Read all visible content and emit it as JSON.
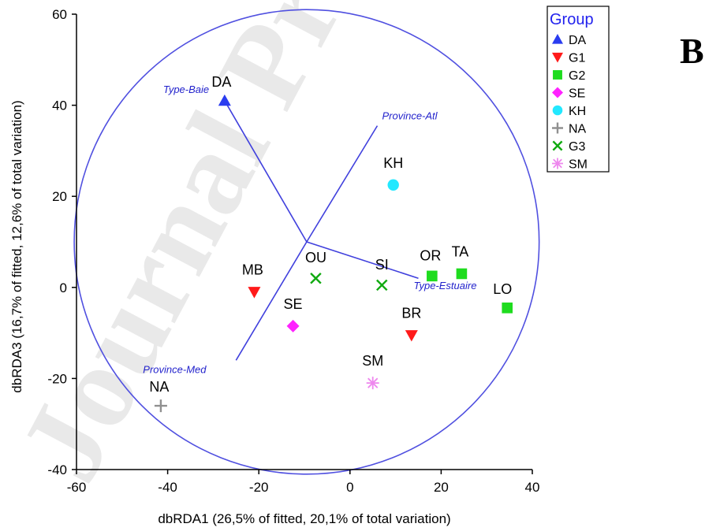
{
  "panel_label": "B",
  "watermark": "Journal Pre-proof",
  "colors": {
    "axis": "#000000",
    "circle": "#5050e0",
    "vector": "#4040dd"
  },
  "chart_data": {
    "type": "scatter",
    "xlabel": "dbRDA1 (26,5% of fitted, 20,1% of total variation)",
    "ylabel": "dbRDA3 (16,7% of fitted, 12,6% of total variation)",
    "xlim": [
      -60,
      40
    ],
    "ylim": [
      -40,
      60
    ],
    "xticks": [
      -60,
      -40,
      -20,
      0,
      20,
      40
    ],
    "yticks": [
      -40,
      -20,
      0,
      20,
      40,
      60
    ],
    "legend": {
      "title": "Group",
      "position": "top-right",
      "entries": [
        {
          "name": "DA",
          "marker": "triangle-up",
          "color": "#2a3cf0"
        },
        {
          "name": "G1",
          "marker": "triangle-down",
          "color": "#ff1a1a"
        },
        {
          "name": "G2",
          "marker": "square",
          "color": "#1edc1e"
        },
        {
          "name": "SE",
          "marker": "diamond",
          "color": "#ff22ff"
        },
        {
          "name": "KH",
          "marker": "circle",
          "color": "#22e8ff"
        },
        {
          "name": "NA",
          "marker": "plus",
          "color": "#909090"
        },
        {
          "name": "G3",
          "marker": "cross",
          "color": "#11aa11"
        },
        {
          "name": "SM",
          "marker": "asterisk",
          "color": "#ee88ee"
        }
      ]
    },
    "points": [
      {
        "label": "DA",
        "group": "DA",
        "x": -27.5,
        "y": 41
      },
      {
        "label": "MB",
        "group": "G1",
        "x": -21,
        "y": -1
      },
      {
        "label": "BR",
        "group": "G1",
        "x": 13.5,
        "y": -10.5
      },
      {
        "label": "OR",
        "group": "G2",
        "x": 18,
        "y": 2.5
      },
      {
        "label": "TA",
        "group": "G2",
        "x": 24.5,
        "y": 3
      },
      {
        "label": "LO",
        "group": "G2",
        "x": 34.5,
        "y": -4.5
      },
      {
        "label": "SE",
        "group": "SE",
        "x": -12.5,
        "y": -8.5
      },
      {
        "label": "KH",
        "group": "KH",
        "x": 9.5,
        "y": 22.5
      },
      {
        "label": "NA",
        "group": "NA",
        "x": -41.5,
        "y": -26
      },
      {
        "label": "OU",
        "group": "G3",
        "x": -7.5,
        "y": 2
      },
      {
        "label": "SI",
        "group": "G3",
        "x": 7,
        "y": 0.5
      },
      {
        "label": "SM",
        "group": "SM",
        "x": 5,
        "y": -21
      }
    ],
    "circle": {
      "center": [
        -9.5,
        10
      ],
      "radius": 51
    },
    "vectors": [
      {
        "label": "Type-Baie",
        "x": -27.5,
        "y": 41
      },
      {
        "label": "Province-Atl",
        "x": 6,
        "y": 35.5
      },
      {
        "label": "Type-Estuaire",
        "x": 15,
        "y": 2
      },
      {
        "label": "Province-Med",
        "x": -25,
        "y": -16
      }
    ]
  }
}
